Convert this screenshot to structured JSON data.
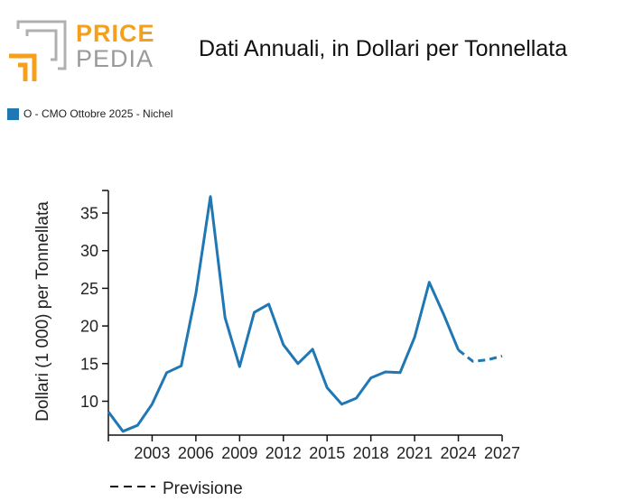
{
  "logo": {
    "line1": "PRICE",
    "line2": "PEDIA"
  },
  "legend": {
    "label": "O - CMO Ottobre 2025 - Nichel",
    "color": "#1f77b4"
  },
  "forecast_legend": {
    "label": "Previsione"
  },
  "chart_data": {
    "type": "line",
    "title": "Dati Annuali, in Dollari per Tonnellata",
    "xlabel": "",
    "ylabel": "Dollari (1 000) per Tonnellata",
    "xlim": [
      2000,
      2027
    ],
    "ylim": [
      5.5,
      38
    ],
    "x_ticks": [
      2003,
      2006,
      2009,
      2012,
      2015,
      2018,
      2021,
      2024,
      2027
    ],
    "y_ticks": [
      10,
      15,
      20,
      25,
      30,
      35
    ],
    "series": [
      {
        "name": "O - CMO Ottobre 2025 - Nichel",
        "color": "#1f77b4",
        "x": [
          2000,
          2001,
          2002,
          2003,
          2004,
          2005,
          2006,
          2007,
          2008,
          2009,
          2010,
          2011,
          2012,
          2013,
          2014,
          2015,
          2016,
          2017,
          2018,
          2019,
          2020,
          2021,
          2022,
          2023,
          2024
        ],
        "values": [
          8.6,
          6.0,
          6.8,
          9.6,
          13.8,
          14.7,
          24.3,
          37.2,
          21.1,
          14.6,
          21.8,
          22.9,
          17.5,
          15.0,
          16.9,
          11.8,
          9.6,
          10.4,
          13.1,
          13.9,
          13.8,
          18.5,
          25.8,
          21.5,
          16.8
        ]
      },
      {
        "name": "Previsione",
        "color": "#1f77b4",
        "dashed": true,
        "x": [
          2024,
          2025,
          2026,
          2027
        ],
        "values": [
          16.8,
          15.3,
          15.5,
          16.0
        ]
      }
    ]
  }
}
